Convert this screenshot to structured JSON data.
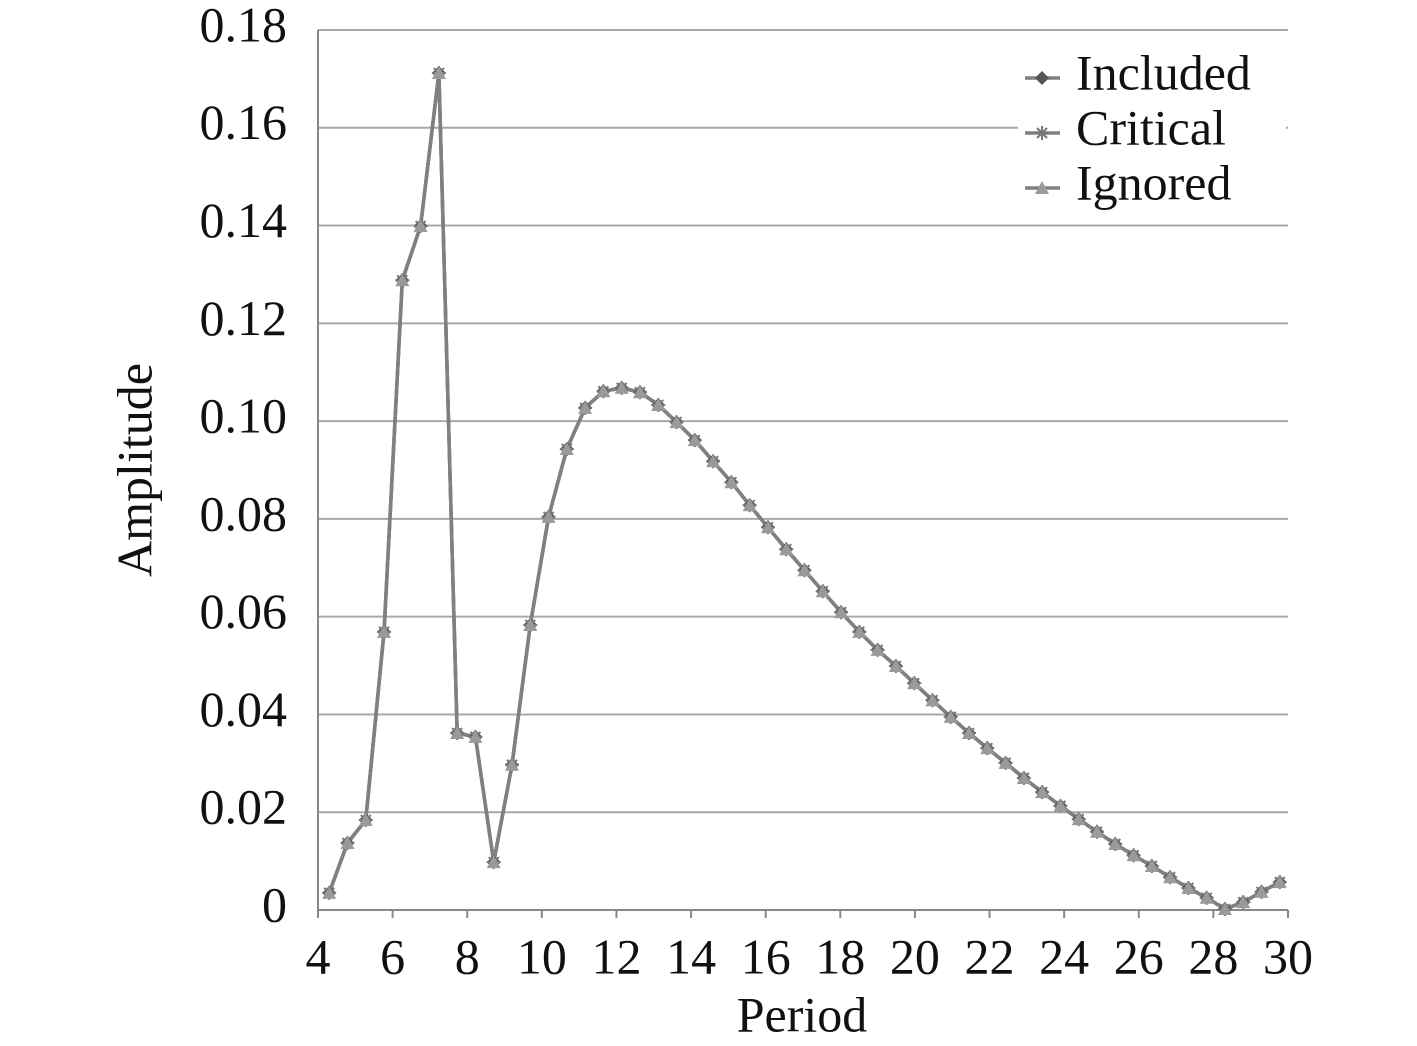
{
  "chart_data": {
    "type": "line",
    "xlabel": "Period",
    "ylabel": "Amplitude",
    "x": [
      4.3,
      4.79,
      5.28,
      5.77,
      6.26,
      6.75,
      7.24,
      7.73,
      8.22,
      8.71,
      9.2,
      9.69,
      10.18,
      10.67,
      11.16,
      11.65,
      12.14,
      12.63,
      13.12,
      13.61,
      14.1,
      14.59,
      15.08,
      15.57,
      16.06,
      16.55,
      17.04,
      17.53,
      18.02,
      18.51,
      19.0,
      19.49,
      19.98,
      20.47,
      20.96,
      21.45,
      21.94,
      22.43,
      22.92,
      23.41,
      23.9,
      24.39,
      24.88,
      25.37,
      25.86,
      26.35,
      26.84,
      27.33,
      27.82,
      28.31,
      28.8,
      29.29,
      29.78
    ],
    "series": [
      {
        "name": "Included",
        "color": "#555555",
        "marker": "diamond",
        "values": [
          0.0035,
          0.0137,
          0.0184,
          0.0569,
          0.1288,
          0.1399,
          0.1712,
          0.0362,
          0.0354,
          0.0098,
          0.0297,
          0.0583,
          0.0804,
          0.0943,
          0.1027,
          0.1061,
          0.1068,
          0.1059,
          0.1033,
          0.0998,
          0.0961,
          0.0918,
          0.0875,
          0.0828,
          0.0783,
          0.0738,
          0.0695,
          0.0652,
          0.0609,
          0.0569,
          0.0532,
          0.0499,
          0.0464,
          0.0429,
          0.0395,
          0.0362,
          0.0331,
          0.0301,
          0.027,
          0.0241,
          0.0213,
          0.0186,
          0.016,
          0.0135,
          0.0112,
          0.009,
          0.0067,
          0.0045,
          0.0025,
          0.0002,
          0.0016,
          0.0037,
          0.0057
        ]
      },
      {
        "name": "Critical",
        "color": "#777777",
        "marker": "star",
        "values": [
          0.0035,
          0.0137,
          0.0184,
          0.0569,
          0.1288,
          0.1399,
          0.1712,
          0.0362,
          0.0354,
          0.0098,
          0.0297,
          0.0583,
          0.0804,
          0.0943,
          0.1027,
          0.1061,
          0.1068,
          0.1059,
          0.1033,
          0.0998,
          0.0961,
          0.0918,
          0.0875,
          0.0828,
          0.0783,
          0.0738,
          0.0695,
          0.0652,
          0.0609,
          0.0569,
          0.0532,
          0.0499,
          0.0464,
          0.0429,
          0.0395,
          0.0362,
          0.0331,
          0.0301,
          0.027,
          0.0241,
          0.0213,
          0.0186,
          0.016,
          0.0135,
          0.0112,
          0.009,
          0.0067,
          0.0045,
          0.0025,
          0.0002,
          0.0016,
          0.0037,
          0.0057
        ]
      },
      {
        "name": "Ignored",
        "color": "#9a9a9a",
        "marker": "triangle",
        "values": [
          0.0035,
          0.0137,
          0.0184,
          0.0569,
          0.1288,
          0.1399,
          0.1712,
          0.0362,
          0.0354,
          0.0098,
          0.0297,
          0.0583,
          0.0804,
          0.0943,
          0.1027,
          0.1061,
          0.1068,
          0.1059,
          0.1033,
          0.0998,
          0.0961,
          0.0918,
          0.0875,
          0.0828,
          0.0783,
          0.0738,
          0.0695,
          0.0652,
          0.0609,
          0.0569,
          0.0532,
          0.0499,
          0.0464,
          0.0429,
          0.0395,
          0.0362,
          0.0331,
          0.0301,
          0.027,
          0.0241,
          0.0213,
          0.0186,
          0.016,
          0.0135,
          0.0112,
          0.009,
          0.0067,
          0.0045,
          0.0025,
          0.0002,
          0.0016,
          0.0037,
          0.0057
        ]
      }
    ],
    "xlim": [
      4,
      30
    ],
    "xticks": [
      4,
      6,
      8,
      10,
      12,
      14,
      16,
      18,
      20,
      22,
      24,
      26,
      28,
      30
    ],
    "ylim": [
      0,
      0.18
    ],
    "yticks": [
      0,
      0.02,
      0.04,
      0.06,
      0.08,
      {
        "value": 0.1,
        "label": "0.10"
      },
      0.12,
      0.14,
      0.16,
      0.18
    ],
    "grid": true,
    "legend": "upper right"
  }
}
